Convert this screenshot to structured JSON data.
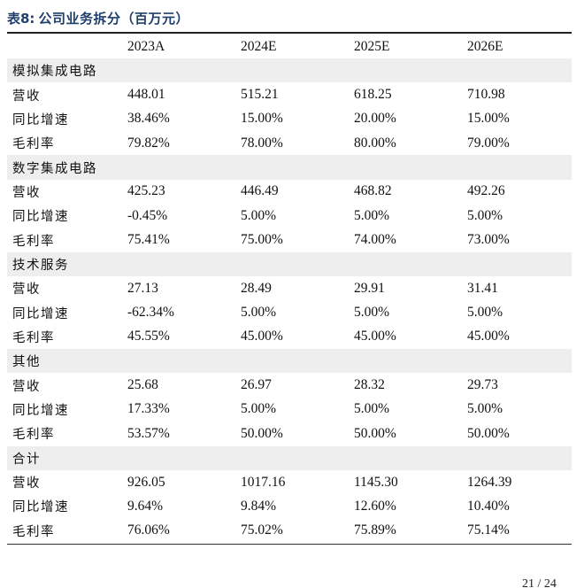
{
  "caption": {
    "label": "表8:",
    "title": "公司业务拆分（百万元）"
  },
  "columns": [
    "",
    "2023A",
    "2024E",
    "2025E",
    "2026E"
  ],
  "segments": [
    {
      "name": "模拟集成电路",
      "rows": [
        {
          "metric": "营收",
          "values": [
            "448.01",
            "515.21",
            "618.25",
            "710.98"
          ]
        },
        {
          "metric": "同比增速",
          "values": [
            "38.46%",
            "15.00%",
            "20.00%",
            "15.00%"
          ]
        },
        {
          "metric": "毛利率",
          "values": [
            "79.82%",
            "78.00%",
            "80.00%",
            "79.00%"
          ]
        }
      ]
    },
    {
      "name": "数字集成电路",
      "rows": [
        {
          "metric": "营收",
          "values": [
            "425.23",
            "446.49",
            "468.82",
            "492.26"
          ]
        },
        {
          "metric": "同比增速",
          "values": [
            "-0.45%",
            "5.00%",
            "5.00%",
            "5.00%"
          ]
        },
        {
          "metric": "毛利率",
          "values": [
            "75.41%",
            "75.00%",
            "74.00%",
            "73.00%"
          ]
        }
      ]
    },
    {
      "name": "技术服务",
      "rows": [
        {
          "metric": "营收",
          "values": [
            "27.13",
            "28.49",
            "29.91",
            "31.41"
          ]
        },
        {
          "metric": "同比增速",
          "values": [
            "-62.34%",
            "5.00%",
            "5.00%",
            "5.00%"
          ]
        },
        {
          "metric": "毛利率",
          "values": [
            "45.55%",
            "45.00%",
            "45.00%",
            "45.00%"
          ]
        }
      ]
    },
    {
      "name": "其他",
      "rows": [
        {
          "metric": "营收",
          "values": [
            "25.68",
            "26.97",
            "28.32",
            "29.73"
          ]
        },
        {
          "metric": "同比增速",
          "values": [
            "17.33%",
            "5.00%",
            "5.00%",
            "5.00%"
          ]
        },
        {
          "metric": "毛利率",
          "values": [
            "53.57%",
            "50.00%",
            "50.00%",
            "50.00%"
          ]
        }
      ]
    },
    {
      "name": "合计",
      "rows": [
        {
          "metric": "营收",
          "values": [
            "926.05",
            "1017.16",
            "1145.30",
            "1264.39"
          ]
        },
        {
          "metric": "同比增速",
          "values": [
            "9.64%",
            "9.84%",
            "12.60%",
            "10.40%"
          ]
        },
        {
          "metric": "毛利率",
          "values": [
            "76.06%",
            "75.02%",
            "75.89%",
            "75.14%"
          ]
        }
      ]
    }
  ],
  "page_number": "21 / 24",
  "colors": {
    "caption": "#1f3f6b",
    "section_band": "#eeeeee",
    "rule": "#222222"
  }
}
